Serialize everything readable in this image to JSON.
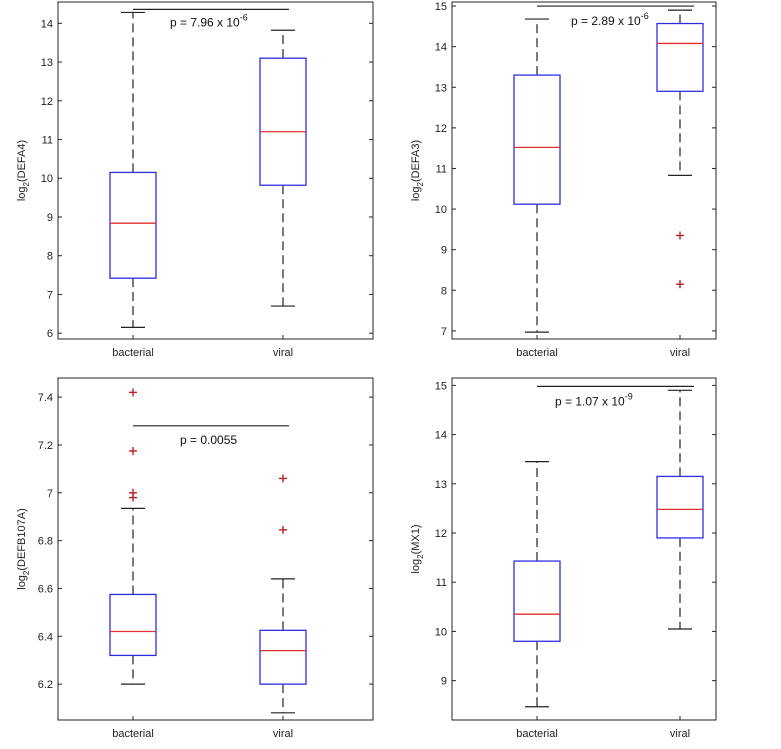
{
  "chart_data": [
    {
      "type": "boxplot",
      "ylabel": "DEFA4",
      "ylabel_prefix": "log",
      "ylabel_sub": "2",
      "ylim": [
        5.85,
        14.55
      ],
      "yticks": [
        6,
        7,
        8,
        9,
        10,
        11,
        12,
        13,
        14
      ],
      "categories": [
        "bacterial",
        "viral"
      ],
      "boxes": [
        {
          "name": "bacterial",
          "whisker_low": 6.15,
          "q1": 7.42,
          "median": 8.84,
          "q3": 10.15,
          "whisker_high": 14.28,
          "outliers": []
        },
        {
          "name": "viral",
          "whisker_low": 6.7,
          "q1": 9.82,
          "median": 11.2,
          "q3": 13.1,
          "whisker_high": 13.82,
          "outliers": []
        }
      ],
      "annotation": {
        "text": "p = 7.96 x 10",
        "exp": "-6",
        "level": 14.36
      }
    },
    {
      "type": "boxplot",
      "ylabel": "DEFA3",
      "ylabel_prefix": "log",
      "ylabel_sub": "2",
      "ylim": [
        6.8,
        15.1
      ],
      "yticks": [
        7,
        8,
        9,
        10,
        11,
        12,
        13,
        14,
        15
      ],
      "categories": [
        "bacterial",
        "viral"
      ],
      "boxes": [
        {
          "name": "bacterial",
          "whisker_low": 6.97,
          "q1": 10.12,
          "median": 11.52,
          "q3": 13.3,
          "whisker_high": 14.68,
          "outliers": []
        },
        {
          "name": "viral",
          "whisker_low": 10.83,
          "q1": 12.9,
          "median": 14.08,
          "q3": 14.57,
          "whisker_high": 14.9,
          "outliers": [
            9.35,
            8.15
          ]
        }
      ],
      "annotation": {
        "text": "p = 2.89 x 10",
        "exp": "-6",
        "level": 15.0
      }
    },
    {
      "type": "boxplot",
      "ylabel": "DEFB107A",
      "ylabel_prefix": "log",
      "ylabel_sub": "2",
      "ylim": [
        6.05,
        7.48
      ],
      "yticks": [
        6.2,
        6.4,
        6.6,
        6.8,
        7,
        7.2,
        7.4
      ],
      "categories": [
        "bacterial",
        "viral"
      ],
      "boxes": [
        {
          "name": "bacterial",
          "whisker_low": 6.2,
          "q1": 6.32,
          "median": 6.42,
          "q3": 6.575,
          "whisker_high": 6.935,
          "outliers": [
            7.42,
            7.175,
            7.0,
            6.98
          ]
        },
        {
          "name": "viral",
          "whisker_low": 6.08,
          "q1": 6.2,
          "median": 6.34,
          "q3": 6.425,
          "whisker_high": 6.64,
          "outliers": [
            7.06,
            6.845
          ]
        }
      ],
      "annotation": {
        "text": "p = 0.0055",
        "exp": "",
        "level": 7.28
      }
    },
    {
      "type": "boxplot",
      "ylabel": "MX1",
      "ylabel_prefix": "log",
      "ylabel_sub": "2",
      "ylim": [
        8.2,
        15.15
      ],
      "yticks": [
        9,
        10,
        11,
        12,
        13,
        14,
        15
      ],
      "categories": [
        "bacterial",
        "viral"
      ],
      "boxes": [
        {
          "name": "bacterial",
          "whisker_low": 8.47,
          "q1": 9.8,
          "median": 10.35,
          "q3": 11.43,
          "whisker_high": 13.45,
          "outliers": []
        },
        {
          "name": "viral",
          "whisker_low": 10.05,
          "q1": 11.9,
          "median": 12.48,
          "q3": 13.15,
          "whisker_high": 14.9,
          "outliers": []
        }
      ],
      "annotation": {
        "text": "p = 1.07 x 10",
        "exp": "-9",
        "level": 14.98
      }
    }
  ]
}
